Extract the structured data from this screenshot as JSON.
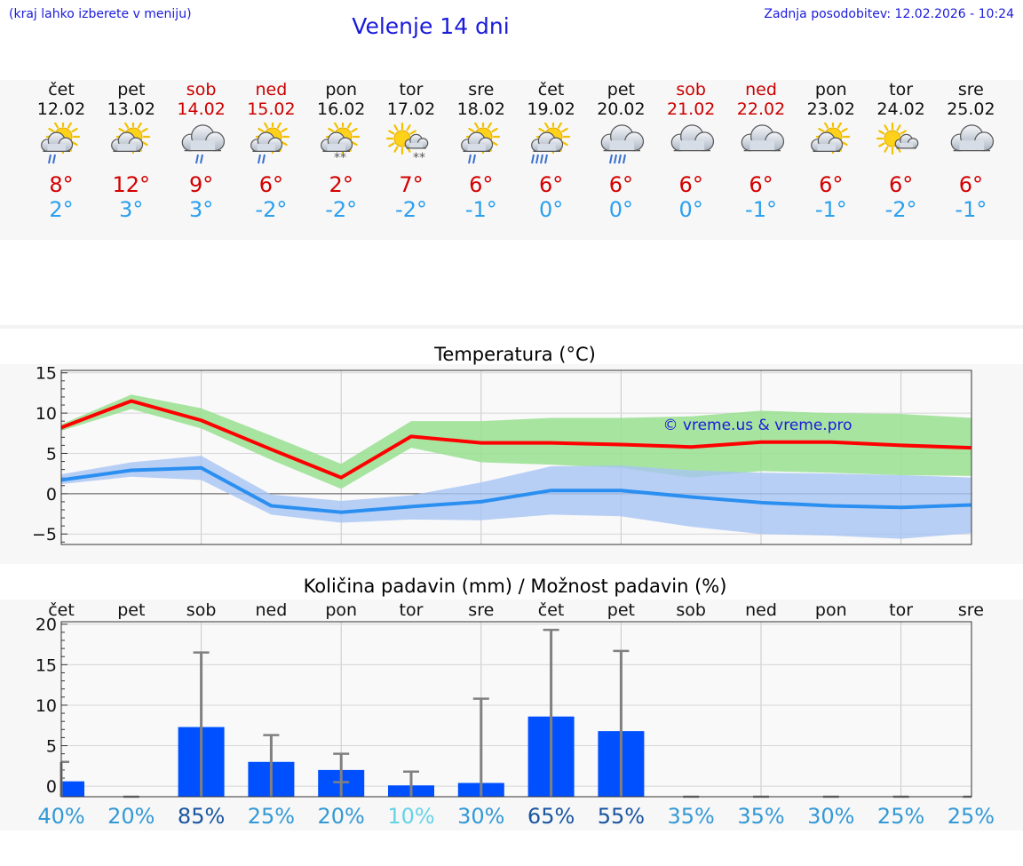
{
  "header": {
    "region_note": "(kraj lahko izberete v meniju)",
    "title": "Velenje 14 dni",
    "updated": "Zadnja posodobitev: 12.02.2026 - 10:24"
  },
  "colors": {
    "title_blue": "#1a1adc",
    "weekend_red": "#cc0000",
    "max_temp": "#d40000",
    "min_temp": "#2aa0ee",
    "bar_blue": "#0050ff"
  },
  "days": [
    {
      "name": "čet",
      "date": "12.02",
      "weekend": false,
      "icon": "sun-cloud-rain",
      "max": "8°",
      "min": "2°"
    },
    {
      "name": "pet",
      "date": "13.02",
      "weekend": false,
      "icon": "sun-cloud",
      "max": "12°",
      "min": "3°"
    },
    {
      "name": "sob",
      "date": "14.02",
      "weekend": true,
      "icon": "cloud-rain",
      "max": "9°",
      "min": "3°"
    },
    {
      "name": "ned",
      "date": "15.02",
      "weekend": true,
      "icon": "sun-cloud-rain",
      "max": "6°",
      "min": "-2°"
    },
    {
      "name": "pon",
      "date": "16.02",
      "weekend": false,
      "icon": "sun-cloud-snow",
      "max": "2°",
      "min": "-2°"
    },
    {
      "name": "tor",
      "date": "17.02",
      "weekend": false,
      "icon": "sun-smallcloud-snow",
      "max": "7°",
      "min": "-2°"
    },
    {
      "name": "sre",
      "date": "18.02",
      "weekend": false,
      "icon": "sun-cloud-rain",
      "max": "6°",
      "min": "-1°"
    },
    {
      "name": "čet",
      "date": "19.02",
      "weekend": false,
      "icon": "sun-cloud-heavyrain",
      "max": "6°",
      "min": "0°"
    },
    {
      "name": "pet",
      "date": "20.02",
      "weekend": false,
      "icon": "cloud-heavyrain",
      "max": "6°",
      "min": "0°"
    },
    {
      "name": "sob",
      "date": "21.02",
      "weekend": true,
      "icon": "cloud",
      "max": "6°",
      "min": "0°"
    },
    {
      "name": "ned",
      "date": "22.02",
      "weekend": true,
      "icon": "cloud",
      "max": "6°",
      "min": "-1°"
    },
    {
      "name": "pon",
      "date": "23.02",
      "weekend": false,
      "icon": "sun-cloud",
      "max": "6°",
      "min": "-1°"
    },
    {
      "name": "tor",
      "date": "24.02",
      "weekend": false,
      "icon": "sun-smallcloud",
      "max": "6°",
      "min": "-2°"
    },
    {
      "name": "sre",
      "date": "25.02",
      "weekend": false,
      "icon": "cloud",
      "max": "6°",
      "min": "-1°"
    }
  ],
  "chart_data": [
    {
      "type": "line",
      "title": "Temperatura (°C)",
      "watermark": "© vreme.us & vreme.pro",
      "xlabel": "",
      "ylabel": "",
      "ylim": [
        -6.3,
        15.3
      ],
      "yticks": [
        15,
        10,
        5,
        0,
        -5
      ],
      "ytick_labels": [
        "15",
        "10",
        "5",
        "0",
        "−5"
      ],
      "x": [
        0,
        1,
        2,
        3,
        4,
        5,
        6,
        7,
        8,
        9,
        10,
        11,
        12,
        13
      ],
      "series": [
        {
          "name": "max",
          "color": "#ff0000",
          "values": [
            8.2,
            11.5,
            9.1,
            5.5,
            2.0,
            7.1,
            6.3,
            6.3,
            6.1,
            5.8,
            6.4,
            6.4,
            6.0,
            5.7
          ]
        },
        {
          "name": "min",
          "color": "#2a8ff0",
          "values": [
            1.7,
            2.9,
            3.2,
            -1.5,
            -2.3,
            -1.6,
            -1.0,
            0.4,
            0.4,
            -0.4,
            -1.1,
            -1.5,
            -1.7,
            -1.4
          ]
        }
      ],
      "bands": [
        {
          "name": "max_range",
          "color": "#99e090",
          "upper": [
            8.6,
            12.3,
            10.6,
            7.2,
            3.7,
            9.0,
            9.0,
            9.4,
            9.4,
            9.6,
            10.3,
            10.0,
            9.9,
            9.4
          ],
          "lower": [
            7.8,
            10.5,
            8.1,
            4.2,
            0.6,
            5.7,
            3.9,
            3.6,
            3.2,
            2.0,
            2.8,
            2.6,
            2.3,
            2.2
          ]
        },
        {
          "name": "min_range",
          "color": "#a8c4f4",
          "upper": [
            2.4,
            3.9,
            4.7,
            -0.1,
            -0.9,
            -0.2,
            1.4,
            3.4,
            3.5,
            2.9,
            2.6,
            2.5,
            2.3,
            2.0
          ],
          "lower": [
            1.2,
            2.1,
            1.7,
            -2.6,
            -3.6,
            -3.2,
            -3.3,
            -2.6,
            -2.8,
            -4.1,
            -5.0,
            -5.2,
            -5.6,
            -4.9
          ]
        }
      ]
    },
    {
      "type": "bar",
      "title": "Količina padavin (mm) / Možnost padavin (%)",
      "categories": [
        "čet",
        "pet",
        "sob",
        "ned",
        "pon",
        "tor",
        "sre",
        "čet",
        "pet",
        "sob",
        "ned",
        "pon",
        "tor",
        "sre"
      ],
      "values": [
        0.6,
        0.0,
        7.3,
        3.0,
        2.0,
        0.1,
        0.4,
        8.6,
        6.8,
        0.0,
        0.0,
        0.0,
        0.0,
        0.0
      ],
      "error_upper": [
        3.0,
        0.0,
        16.5,
        6.3,
        4.0,
        1.8,
        10.8,
        19.3,
        16.7,
        0.0,
        0.0,
        0.0,
        0.0,
        0.0
      ],
      "error_lower": [
        0.0,
        0.0,
        0.0,
        0.0,
        0.5,
        0.0,
        0.0,
        0.0,
        0.0,
        0.0,
        0.0,
        0.0,
        0.0,
        0.0
      ],
      "probability": [
        "40%",
        "20%",
        "85%",
        "25%",
        "20%",
        "10%",
        "30%",
        "65%",
        "55%",
        "35%",
        "35%",
        "30%",
        "25%",
        "25%"
      ],
      "probability_colors": [
        "#3399d6",
        "#3399d6",
        "#1a55a0",
        "#3399d6",
        "#3399d6",
        "#66d3e6",
        "#3399d6",
        "#1a55a0",
        "#1a55a0",
        "#3399d6",
        "#3399d6",
        "#3399d6",
        "#3399d6",
        "#3399d6"
      ],
      "ylim": [
        -1.3,
        20.3
      ],
      "yticks": [
        20,
        15,
        10,
        5,
        0
      ],
      "ytick_labels": [
        "20",
        "15",
        "10",
        "5",
        "0"
      ],
      "bar_color": "#0050ff",
      "error_color": "#808080"
    }
  ]
}
